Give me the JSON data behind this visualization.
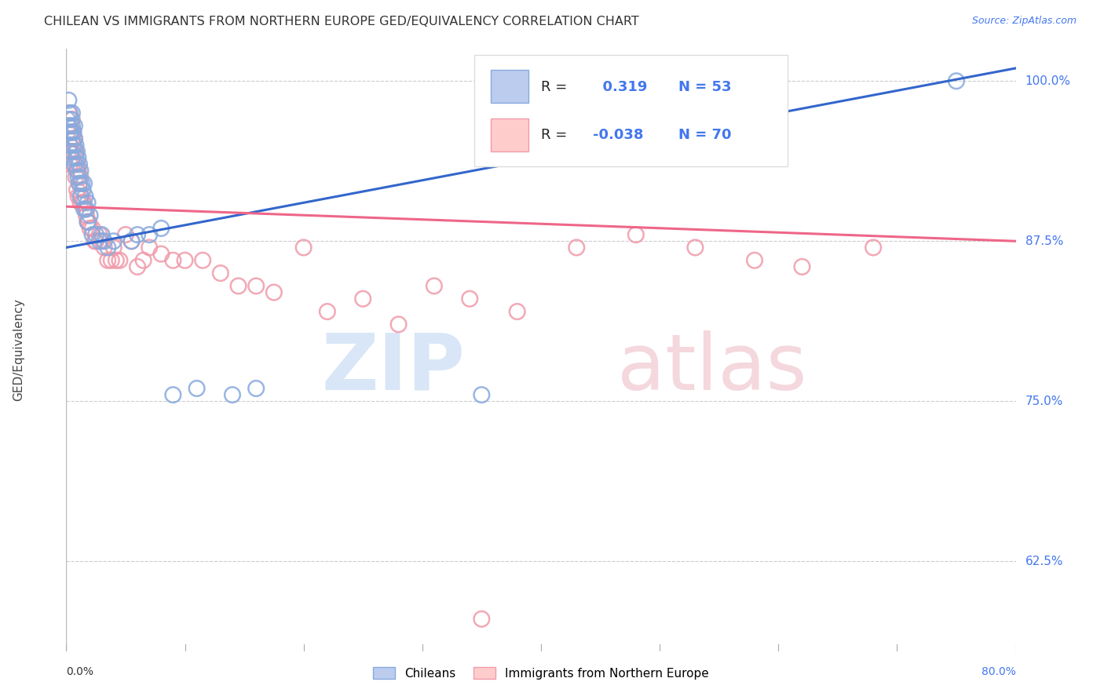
{
  "title": "CHILEAN VS IMMIGRANTS FROM NORTHERN EUROPE GED/EQUIVALENCY CORRELATION CHART",
  "source": "Source: ZipAtlas.com",
  "ylabel": "GED/Equivalency",
  "yticks": [
    0.625,
    0.75,
    0.875,
    1.0
  ],
  "ytick_labels": [
    "62.5%",
    "75.0%",
    "87.5%",
    "100.0%"
  ],
  "xmin": 0.0,
  "xmax": 0.8,
  "ymin": 0.555,
  "ymax": 1.025,
  "blue_R": 0.319,
  "blue_N": 53,
  "pink_R": -0.038,
  "pink_N": 70,
  "blue_color": "#88AADD",
  "pink_color": "#F09AAA",
  "blue_line_color": "#3366CC",
  "pink_line_color": "#EE6688",
  "legend_label_blue": "Chileans",
  "legend_label_pink": "Immigrants from Northern Europe",
  "blue_scatter_x": [
    0.001,
    0.002,
    0.002,
    0.003,
    0.003,
    0.003,
    0.004,
    0.004,
    0.004,
    0.005,
    0.005,
    0.005,
    0.006,
    0.006,
    0.007,
    0.007,
    0.007,
    0.008,
    0.008,
    0.009,
    0.009,
    0.01,
    0.01,
    0.011,
    0.011,
    0.012,
    0.012,
    0.013,
    0.014,
    0.015,
    0.015,
    0.016,
    0.017,
    0.018,
    0.018,
    0.02,
    0.022,
    0.025,
    0.028,
    0.03,
    0.032,
    0.035,
    0.04,
    0.055,
    0.06,
    0.07,
    0.08,
    0.09,
    0.11,
    0.14,
    0.16,
    0.35,
    0.75
  ],
  "blue_scatter_y": [
    0.97,
    0.965,
    0.985,
    0.975,
    0.96,
    0.95,
    0.97,
    0.96,
    0.945,
    0.975,
    0.965,
    0.94,
    0.96,
    0.95,
    0.965,
    0.955,
    0.935,
    0.95,
    0.94,
    0.945,
    0.93,
    0.94,
    0.925,
    0.935,
    0.92,
    0.93,
    0.91,
    0.92,
    0.915,
    0.92,
    0.9,
    0.91,
    0.9,
    0.905,
    0.89,
    0.895,
    0.88,
    0.88,
    0.875,
    0.88,
    0.875,
    0.87,
    0.875,
    0.875,
    0.88,
    0.88,
    0.885,
    0.755,
    0.76,
    0.755,
    0.76,
    0.755,
    1.0
  ],
  "pink_scatter_x": [
    0.001,
    0.002,
    0.002,
    0.003,
    0.003,
    0.003,
    0.004,
    0.004,
    0.005,
    0.005,
    0.005,
    0.006,
    0.006,
    0.007,
    0.007,
    0.008,
    0.008,
    0.009,
    0.009,
    0.01,
    0.01,
    0.011,
    0.012,
    0.012,
    0.013,
    0.014,
    0.015,
    0.016,
    0.017,
    0.018,
    0.019,
    0.02,
    0.022,
    0.024,
    0.025,
    0.028,
    0.03,
    0.032,
    0.035,
    0.038,
    0.04,
    0.042,
    0.045,
    0.05,
    0.055,
    0.06,
    0.065,
    0.07,
    0.08,
    0.09,
    0.1,
    0.115,
    0.13,
    0.145,
    0.16,
    0.175,
    0.2,
    0.22,
    0.25,
    0.28,
    0.31,
    0.34,
    0.38,
    0.43,
    0.48,
    0.53,
    0.58,
    0.62,
    0.68,
    0.35
  ],
  "pink_scatter_y": [
    0.96,
    0.945,
    0.975,
    0.965,
    0.95,
    0.935,
    0.96,
    0.945,
    0.97,
    0.955,
    0.935,
    0.96,
    0.945,
    0.955,
    0.935,
    0.945,
    0.925,
    0.935,
    0.915,
    0.93,
    0.91,
    0.92,
    0.925,
    0.905,
    0.91,
    0.905,
    0.905,
    0.9,
    0.895,
    0.89,
    0.89,
    0.885,
    0.885,
    0.875,
    0.875,
    0.88,
    0.875,
    0.87,
    0.86,
    0.86,
    0.87,
    0.86,
    0.86,
    0.88,
    0.875,
    0.855,
    0.86,
    0.87,
    0.865,
    0.86,
    0.86,
    0.86,
    0.85,
    0.84,
    0.84,
    0.835,
    0.87,
    0.82,
    0.83,
    0.81,
    0.84,
    0.83,
    0.82,
    0.87,
    0.88,
    0.87,
    0.86,
    0.855,
    0.87,
    0.58
  ],
  "blue_trend_x": [
    0.0,
    0.8
  ],
  "blue_trend_y": [
    0.87,
    1.01
  ],
  "pink_trend_x": [
    0.0,
    0.8
  ],
  "pink_trend_y": [
    0.902,
    0.875
  ]
}
